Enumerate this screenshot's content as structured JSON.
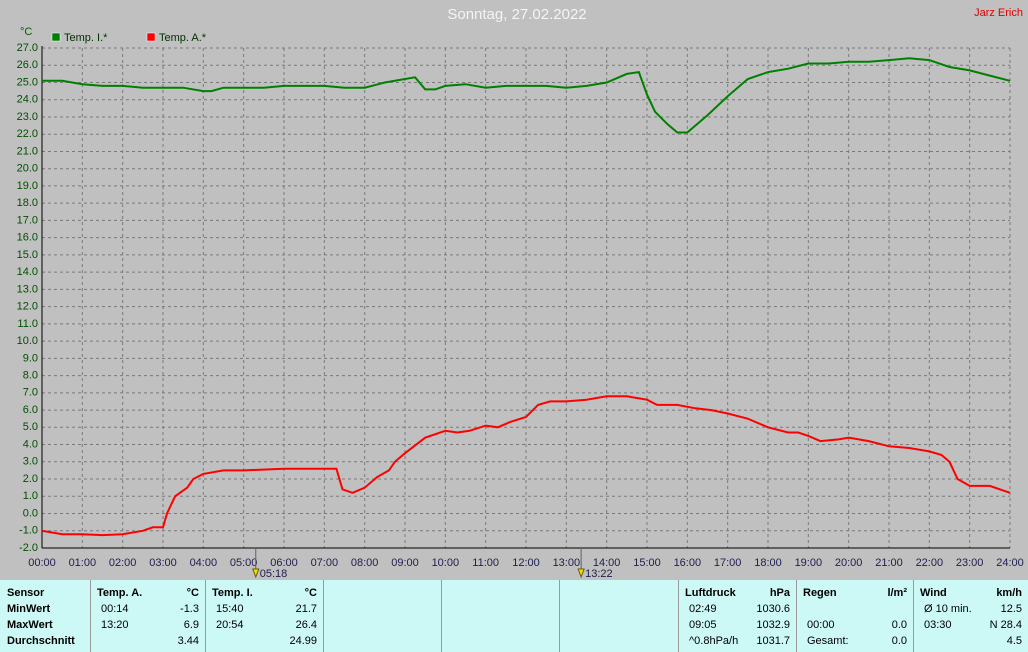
{
  "chart_data": {
    "type": "line",
    "title": "Sonntag, 27.02.2022",
    "author": "Jarz Erich",
    "y_label": "°C",
    "xlim": [
      0,
      24
    ],
    "ylim": [
      -2,
      27
    ],
    "grid": true,
    "xticks": [
      {
        "value": 0,
        "label": "00:00"
      },
      {
        "value": 1,
        "label": "01:00"
      },
      {
        "value": 2,
        "label": "02:00"
      },
      {
        "value": 3,
        "label": "03:00"
      },
      {
        "value": 4,
        "label": "04:00"
      },
      {
        "value": 5,
        "label": "05:00"
      },
      {
        "value": 6,
        "label": "06:00"
      },
      {
        "value": 7,
        "label": "07:00"
      },
      {
        "value": 8,
        "label": "08:00"
      },
      {
        "value": 9,
        "label": "09:00"
      },
      {
        "value": 10,
        "label": "10:00"
      },
      {
        "value": 11,
        "label": "11:00"
      },
      {
        "value": 12,
        "label": "12:00"
      },
      {
        "value": 13,
        "label": "13:00"
      },
      {
        "value": 14,
        "label": "14:00"
      },
      {
        "value": 15,
        "label": "15:00"
      },
      {
        "value": 16,
        "label": "16:00"
      },
      {
        "value": 17,
        "label": "17:00"
      },
      {
        "value": 18,
        "label": "18:00"
      },
      {
        "value": 19,
        "label": "19:00"
      },
      {
        "value": 20,
        "label": "20:00"
      },
      {
        "value": 21,
        "label": "21:00"
      },
      {
        "value": 22,
        "label": "22:00"
      },
      {
        "value": 23,
        "label": "23:00"
      },
      {
        "value": 24,
        "label": "24:00"
      }
    ],
    "yticks": [
      {
        "value": -2,
        "label": "-2.0"
      },
      {
        "value": -1,
        "label": "-1.0"
      },
      {
        "value": 0,
        "label": "0.0"
      },
      {
        "value": 1,
        "label": "1.0"
      },
      {
        "value": 2,
        "label": "2.0"
      },
      {
        "value": 3,
        "label": "3.0"
      },
      {
        "value": 4,
        "label": "4.0"
      },
      {
        "value": 5,
        "label": "5.0"
      },
      {
        "value": 6,
        "label": "6.0"
      },
      {
        "value": 7,
        "label": "7.0"
      },
      {
        "value": 8,
        "label": "8.0"
      },
      {
        "value": 9,
        "label": "9.0"
      },
      {
        "value": 10,
        "label": "10.0"
      },
      {
        "value": 11,
        "label": "11.0"
      },
      {
        "value": 12,
        "label": "12.0"
      },
      {
        "value": 13,
        "label": "13.0"
      },
      {
        "value": 14,
        "label": "14.0"
      },
      {
        "value": 15,
        "label": "15.0"
      },
      {
        "value": 16,
        "label": "16.0"
      },
      {
        "value": 17,
        "label": "17.0"
      },
      {
        "value": 18,
        "label": "18.0"
      },
      {
        "value": 19,
        "label": "19.0"
      },
      {
        "value": 20,
        "label": "20.0"
      },
      {
        "value": 21,
        "label": "21.0"
      },
      {
        "value": 22,
        "label": "22.0"
      },
      {
        "value": 23,
        "label": "23.0"
      },
      {
        "value": 24,
        "label": "24.0"
      },
      {
        "value": 25,
        "label": "25.0"
      },
      {
        "value": 26,
        "label": "26.0"
      },
      {
        "value": 27,
        "label": "27.0"
      }
    ],
    "annotations": [
      {
        "x": 5.3,
        "label": "05:18"
      },
      {
        "x": 13.3667,
        "label": "13:22"
      }
    ],
    "series": [
      {
        "name": "Temp. I.*",
        "color": "#008000",
        "x": [
          0,
          0.5,
          1,
          1.5,
          2,
          2.5,
          3,
          3.5,
          4,
          4.2,
          4.5,
          5,
          5.5,
          6,
          6.5,
          7,
          7.5,
          8,
          8.5,
          9,
          9.25,
          9.5,
          9.75,
          10,
          10.5,
          11,
          11.5,
          12,
          12.5,
          13,
          13.5,
          14,
          14.5,
          14.8,
          15,
          15.2,
          15.5,
          15.75,
          16,
          16.5,
          17,
          17.5,
          18,
          18.5,
          19,
          19.5,
          20,
          20.5,
          21,
          21.5,
          22,
          22.5,
          23,
          23.5,
          24
        ],
        "values": [
          25.1,
          25.1,
          24.9,
          24.8,
          24.8,
          24.7,
          24.7,
          24.7,
          24.5,
          24.5,
          24.7,
          24.7,
          24.7,
          24.8,
          24.8,
          24.8,
          24.7,
          24.7,
          25.0,
          25.2,
          25.3,
          24.6,
          24.6,
          24.8,
          24.9,
          24.7,
          24.8,
          24.8,
          24.8,
          24.7,
          24.8,
          25.0,
          25.5,
          25.6,
          24.3,
          23.3,
          22.6,
          22.1,
          22.1,
          23.1,
          24.2,
          25.2,
          25.6,
          25.8,
          26.1,
          26.1,
          26.2,
          26.2,
          26.3,
          26.4,
          26.3,
          25.9,
          25.7,
          25.4,
          25.1
        ]
      },
      {
        "name": "Temp. A.*",
        "color": "#ff0000",
        "x": [
          0,
          0.25,
          0.5,
          1,
          1.5,
          2,
          2.5,
          2.75,
          3,
          3.1,
          3.3,
          3.6,
          3.75,
          4,
          4.5,
          5,
          6,
          7,
          7.3,
          7.45,
          7.7,
          8,
          8.3,
          8.6,
          8.75,
          9,
          9.5,
          10,
          10.3,
          10.6,
          11,
          11.3,
          11.6,
          12,
          12.3,
          12.6,
          13,
          13.5,
          14,
          14.5,
          15,
          15.25,
          15.75,
          16.2,
          16.6,
          17,
          17.5,
          18,
          18.5,
          18.75,
          19,
          19.3,
          19.75,
          20,
          20.5,
          21,
          21.5,
          22,
          22.3,
          22.5,
          22.7,
          23,
          23.5,
          24
        ],
        "values": [
          -1.0,
          -1.1,
          -1.2,
          -1.2,
          -1.25,
          -1.2,
          -1.0,
          -0.8,
          -0.8,
          0.0,
          1.0,
          1.5,
          2.0,
          2.3,
          2.5,
          2.5,
          2.6,
          2.6,
          2.6,
          1.4,
          1.2,
          1.5,
          2.1,
          2.5,
          3.0,
          3.5,
          4.4,
          4.8,
          4.7,
          4.8,
          5.1,
          5.0,
          5.3,
          5.6,
          6.3,
          6.5,
          6.5,
          6.6,
          6.8,
          6.8,
          6.6,
          6.3,
          6.3,
          6.1,
          6.0,
          5.8,
          5.5,
          5.0,
          4.7,
          4.7,
          4.5,
          4.2,
          4.3,
          4.4,
          4.2,
          3.9,
          3.8,
          3.6,
          3.4,
          3.0,
          2.0,
          1.6,
          1.6,
          1.2
        ]
      }
    ]
  },
  "table": {
    "groups": [
      {
        "title": "Sensor",
        "rows": [
          [
            "MinWert"
          ],
          [
            "MaxWert"
          ],
          [
            "Durchschnitt"
          ]
        ]
      },
      {
        "title": "Temp. A.",
        "unit": "°C",
        "rows": [
          [
            "00:14",
            "-1.3"
          ],
          [
            "13:20",
            "6.9"
          ],
          [
            null,
            "3.44"
          ]
        ]
      },
      {
        "title": "Temp. I.",
        "unit": "°C",
        "rows": [
          [
            "15:40",
            "21.7"
          ],
          [
            "20:54",
            "26.4"
          ],
          [
            null,
            "24.99"
          ]
        ]
      },
      {
        "rows": []
      },
      {
        "rows": []
      },
      {
        "rows": []
      },
      {
        "title": "Luftdruck",
        "unit": "hPa",
        "rows": [
          [
            "02:49",
            "1030.6"
          ],
          [
            "09:05",
            "1032.9"
          ],
          [
            "^0.8hPa/h",
            "1031.7"
          ]
        ]
      },
      {
        "title": "Regen",
        "unit": "l/m²",
        "rows": [
          [
            null,
            null
          ],
          [
            "00:00",
            "0.0"
          ],
          [
            "Gesamt:",
            "0.0"
          ]
        ]
      },
      {
        "title": "Wind",
        "unit": "km/h",
        "rows": [
          [
            "Ø 10 min.",
            "12.5"
          ],
          [
            "03:30",
            "N 28.4"
          ],
          [
            null,
            "4.5"
          ]
        ]
      }
    ]
  }
}
